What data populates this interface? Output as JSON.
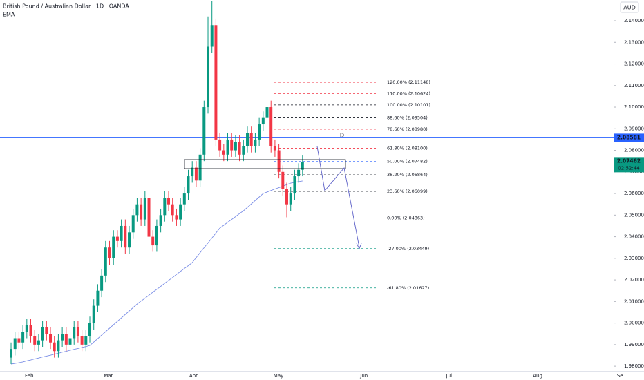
{
  "chart_data": {
    "type": "candlestick",
    "title": "British Pound / Australian Dollar · 1D · OANDA",
    "indicator": "EMA",
    "currency": "AUD",
    "up_color": "#089981",
    "down_color": "#f23645",
    "open": [
      1.984,
      1.988,
      1.993,
      1.991,
      1.996,
      1.999,
      1.994,
      1.99,
      1.992,
      1.998,
      1.995,
      1.991,
      1.987,
      1.992,
      1.995,
      1.99,
      1.993,
      1.998,
      1.994,
      1.99,
      1.994,
      2.0,
      2.008,
      2.015,
      2.022,
      2.035,
      2.03,
      2.04,
      2.038,
      2.045,
      2.035,
      2.042,
      2.05,
      2.055,
      2.048,
      2.058,
      2.04,
      2.036,
      2.045,
      2.05,
      2.058,
      2.055,
      2.05,
      2.048,
      2.055,
      2.06,
      2.068,
      2.072,
      2.066,
      2.078,
      2.1,
      2.128,
      2.138,
      2.085,
      2.08,
      2.078,
      2.085,
      2.08,
      2.084,
      2.078,
      2.082,
      2.088,
      2.082,
      2.085,
      2.092,
      2.095,
      2.1,
      2.082,
      2.08,
      2.07,
      2.062,
      2.055,
      2.06,
      2.068,
      2.071
    ],
    "high": [
      1.991,
      1.996,
      1.996,
      1.999,
      2.002,
      2.002,
      1.997,
      1.995,
      2.001,
      2.001,
      1.998,
      1.994,
      1.995,
      1.998,
      1.998,
      1.996,
      2.001,
      2.001,
      1.997,
      1.997,
      2.003,
      2.011,
      2.018,
      2.025,
      2.038,
      2.038,
      2.043,
      2.043,
      2.048,
      2.048,
      2.045,
      2.053,
      2.058,
      2.058,
      2.061,
      2.061,
      2.043,
      2.048,
      2.053,
      2.061,
      2.061,
      2.058,
      2.053,
      2.058,
      2.063,
      2.071,
      2.075,
      2.075,
      2.081,
      2.103,
      2.142,
      2.149,
      2.141,
      2.088,
      2.083,
      2.088,
      2.088,
      2.087,
      2.087,
      2.085,
      2.091,
      2.091,
      2.088,
      2.095,
      2.098,
      2.103,
      2.103,
      2.085,
      2.083,
      2.073,
      2.065,
      2.063,
      2.071,
      2.074,
      2.0776
    ],
    "low": [
      1.981,
      1.985,
      1.988,
      1.988,
      1.993,
      1.991,
      1.987,
      1.987,
      1.989,
      1.992,
      1.988,
      1.984,
      1.984,
      1.989,
      1.987,
      1.987,
      1.99,
      1.991,
      1.987,
      1.987,
      1.991,
      1.997,
      2.005,
      2.012,
      2.019,
      2.027,
      2.027,
      2.035,
      2.035,
      2.032,
      2.032,
      2.039,
      2.047,
      2.045,
      2.045,
      2.037,
      2.033,
      2.033,
      2.042,
      2.047,
      2.052,
      2.047,
      2.045,
      2.045,
      2.052,
      2.057,
      2.065,
      2.063,
      2.063,
      2.075,
      2.097,
      2.125,
      2.082,
      2.077,
      2.075,
      2.075,
      2.077,
      2.077,
      2.075,
      2.075,
      2.079,
      2.079,
      2.079,
      2.082,
      2.089,
      2.092,
      2.079,
      2.077,
      2.067,
      2.059,
      2.049,
      2.052,
      2.057,
      2.065,
      2.068
    ],
    "close": [
      1.988,
      1.993,
      1.991,
      1.996,
      1.999,
      1.994,
      1.99,
      1.992,
      1.998,
      1.995,
      1.991,
      1.987,
      1.992,
      1.995,
      1.99,
      1.993,
      1.998,
      1.994,
      1.99,
      1.994,
      2.0,
      2.008,
      2.015,
      2.022,
      2.035,
      2.03,
      2.04,
      2.038,
      2.045,
      2.035,
      2.042,
      2.05,
      2.055,
      2.048,
      2.058,
      2.04,
      2.036,
      2.045,
      2.05,
      2.058,
      2.055,
      2.05,
      2.048,
      2.055,
      2.06,
      2.068,
      2.072,
      2.066,
      2.078,
      2.1,
      2.128,
      2.138,
      2.085,
      2.08,
      2.078,
      2.085,
      2.08,
      2.084,
      2.078,
      2.082,
      2.088,
      2.082,
      2.085,
      2.092,
      2.095,
      2.1,
      2.082,
      2.08,
      2.07,
      2.062,
      2.055,
      2.06,
      2.068,
      2.071,
      2.0746
    ],
    "ema": {
      "color": "#7b8ee6",
      "values": [
        1.981,
        1.9813,
        1.9816,
        1.982,
        1.9825,
        1.9829,
        1.9834,
        1.9838,
        1.9843,
        1.9847,
        1.9851,
        1.9856,
        1.986,
        1.9865,
        1.9869,
        1.9874,
        1.9878,
        1.9882,
        1.9887,
        1.9891,
        1.9896,
        1.9912,
        1.9928,
        1.9944,
        1.996,
        1.9976,
        1.9992,
        2.0008,
        2.0024,
        2.004,
        2.0056,
        2.0072,
        2.0088,
        2.0102,
        2.0115,
        2.0129,
        2.0143,
        2.0156,
        2.017,
        2.0184,
        2.0198,
        2.0211,
        2.0225,
        2.0239,
        2.0253,
        2.0266,
        2.028,
        2.0303,
        2.0326,
        2.0349,
        2.0371,
        2.0394,
        2.0417,
        2.044,
        2.0453,
        2.0467,
        2.048,
        2.0493,
        2.0507,
        2.052,
        2.0536,
        2.0552,
        2.0568,
        2.0584,
        2.06,
        2.0607,
        2.0614,
        2.0621,
        2.0627,
        2.0634,
        2.0641,
        2.0648,
        2.0652,
        2.0655,
        2.0658
      ]
    },
    "ylim": [
      1.9778,
      2.1496
    ],
    "yticks": [
      {
        "value": 2.14,
        "label": "2.14000"
      },
      {
        "value": 2.13,
        "label": "2.13000"
      },
      {
        "value": 2.12,
        "label": "2.12000"
      },
      {
        "value": 2.11,
        "label": "2.11000"
      },
      {
        "value": 2.1,
        "label": "2.10000"
      },
      {
        "value": 2.09,
        "label": "2.09000"
      },
      {
        "value": 2.08,
        "label": "2.08000"
      },
      {
        "value": 2.07,
        "label": "2.07000"
      },
      {
        "value": 2.06,
        "label": "2.06000"
      },
      {
        "value": 2.05,
        "label": "2.05000"
      },
      {
        "value": 2.04,
        "label": "2.04000"
      },
      {
        "value": 2.03,
        "label": "2.03000"
      },
      {
        "value": 2.02,
        "label": "2.02000"
      },
      {
        "value": 2.01,
        "label": "2.01000"
      },
      {
        "value": 2.0,
        "label": "2.00000"
      },
      {
        "value": 1.99,
        "label": "1.99000"
      },
      {
        "value": 1.98,
        "label": "1.98000"
      }
    ],
    "xlim": [
      -2.81,
      160.7
    ],
    "xticks": [
      {
        "value": 4.6,
        "label": "Feb"
      },
      {
        "value": 24.7,
        "label": "Mar"
      },
      {
        "value": 46.3,
        "label": "Apr"
      },
      {
        "value": 67.9,
        "label": "May"
      },
      {
        "value": 89.6,
        "label": "Jun"
      },
      {
        "value": 111.2,
        "label": "Jul"
      },
      {
        "value": 133.7,
        "label": "Aug"
      },
      {
        "value": 154.6,
        "label": "Se"
      }
    ],
    "fib_levels": [
      {
        "value": 2.11148,
        "label": "120.00% (2.11148)",
        "color": "#f23645"
      },
      {
        "value": 2.10624,
        "label": "110.00% (2.10624)",
        "color": "#f23645"
      },
      {
        "value": 2.10101,
        "label": "100.00% (2.10101)",
        "color": "#131722"
      },
      {
        "value": 2.09504,
        "label": "88.60% (2.09504)",
        "color": "#131722"
      },
      {
        "value": 2.0898,
        "label": "78.60% (2.08980)",
        "color": "#f23645"
      },
      {
        "value": 2.081,
        "label": "61.80% (2.08100)",
        "color": "#f23645"
      },
      {
        "value": 2.07482,
        "label": "50.00% (2.07482)",
        "color": "#2962ff"
      },
      {
        "value": 2.06864,
        "label": "38.20% (2.06864)",
        "color": "#131722"
      },
      {
        "value": 2.06099,
        "label": "23.60% (2.06099)",
        "color": "#131722"
      },
      {
        "value": 2.04863,
        "label": "0.00% (2.04863)",
        "color": "#131722"
      },
      {
        "value": 2.03449,
        "label": "-27.00% (2.03449)",
        "color": "#089981"
      },
      {
        "value": 2.01627,
        "label": "-61.80% (2.01627)",
        "color": "#089981"
      }
    ],
    "horizontal_line": {
      "name": "D",
      "value": 2.08581,
      "label": "2.08581",
      "color": "#2962ff"
    },
    "last_price": {
      "value": 2.07462,
      "label": "2.07462",
      "countdown": "02:52:44",
      "color": "#089981"
    },
    "annotation": {
      "text": "D",
      "color": "#f23645"
    }
  }
}
